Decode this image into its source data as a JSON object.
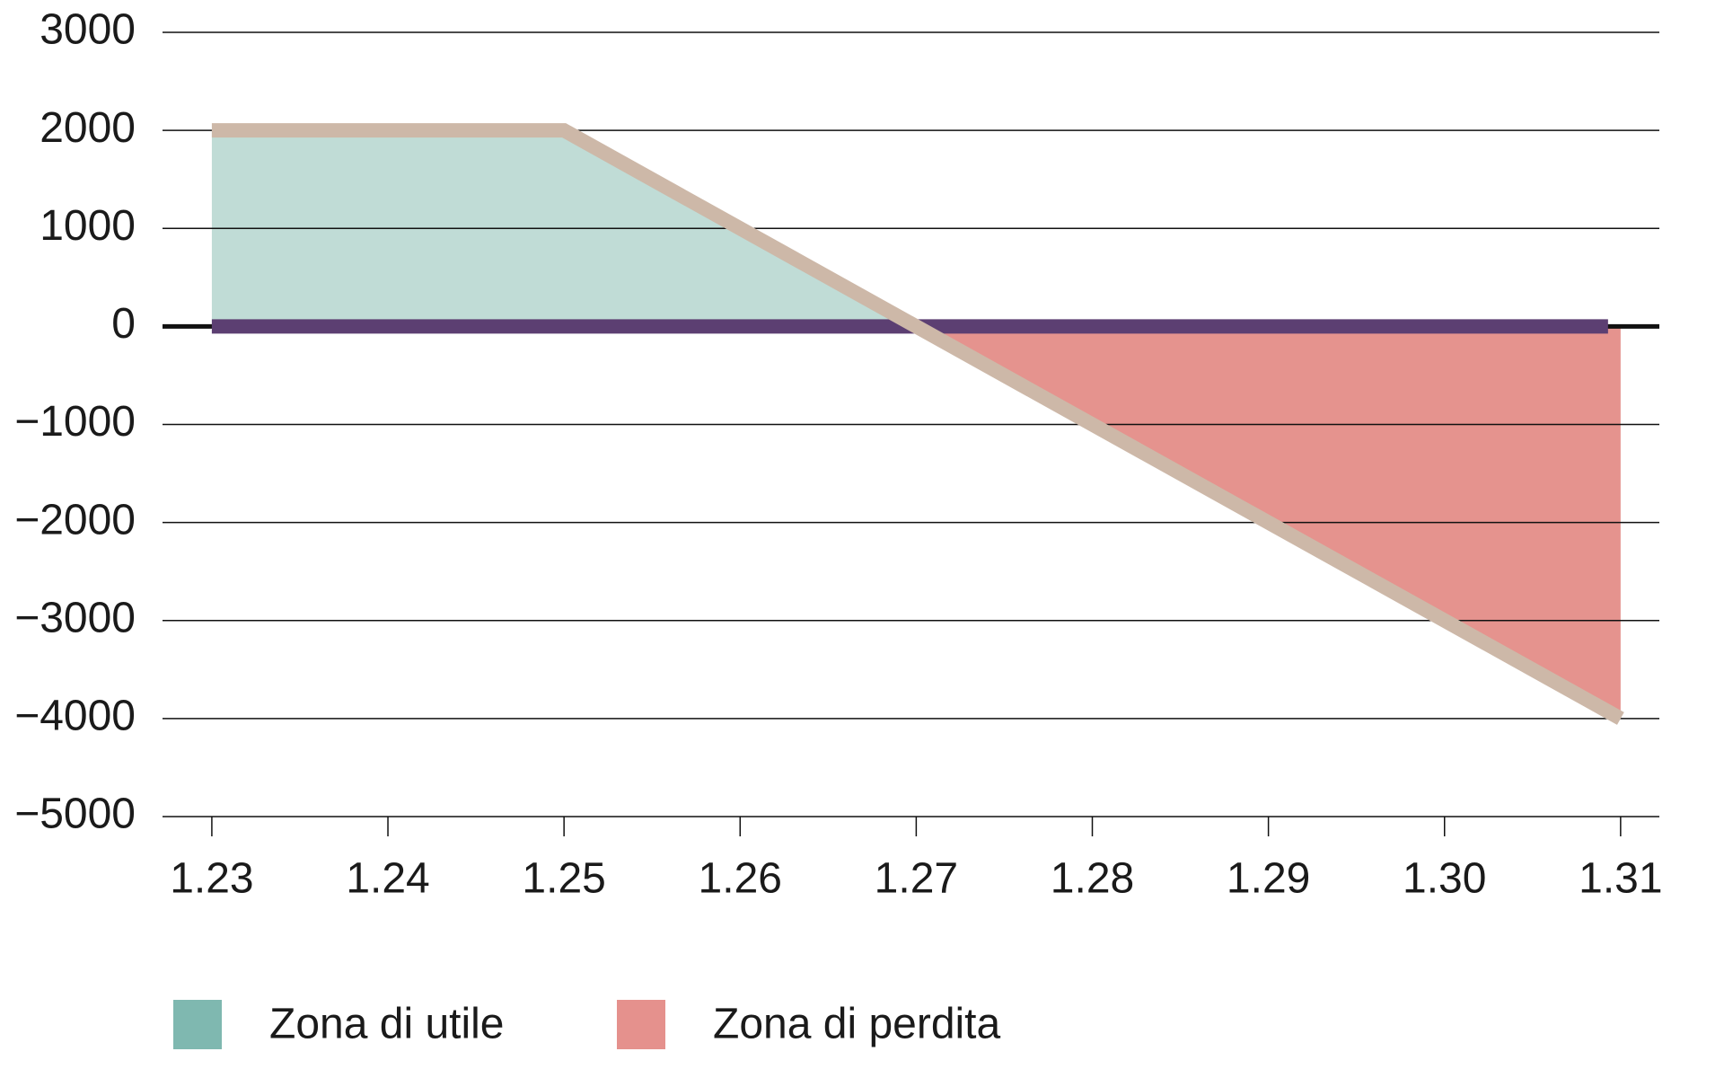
{
  "chart_data": {
    "type": "line",
    "x": [
      1.23,
      1.25,
      1.27,
      1.31
    ],
    "values": [
      2000,
      2000,
      0,
      -4000
    ],
    "color": "#cdb8a8",
    "zero_line_color": "#5c3f72",
    "zones": [
      {
        "name": "Zona di utile",
        "color": "#7fb8b0",
        "fill": "#c0dcd6"
      },
      {
        "name": "Zona di perdita",
        "color": "#e5918d",
        "fill": "#e5938e"
      }
    ],
    "xlim": [
      1.2272,
      1.3122
    ],
    "ylim": [
      -5000,
      3000
    ],
    "xticks": [
      1.23,
      1.24,
      1.25,
      1.26,
      1.27,
      1.28,
      1.29,
      {
        "value": 1.3,
        "label": "1.30"
      },
      1.31
    ],
    "yticks": [
      {
        "value": -5000,
        "label": "−5000"
      },
      {
        "value": -4000,
        "label": "−4000"
      },
      {
        "value": -3000,
        "label": "−3000"
      },
      {
        "value": -2000,
        "label": "−2000"
      },
      {
        "value": -1000,
        "label": "−1000"
      },
      0,
      1000,
      2000,
      3000
    ],
    "grid": true
  }
}
